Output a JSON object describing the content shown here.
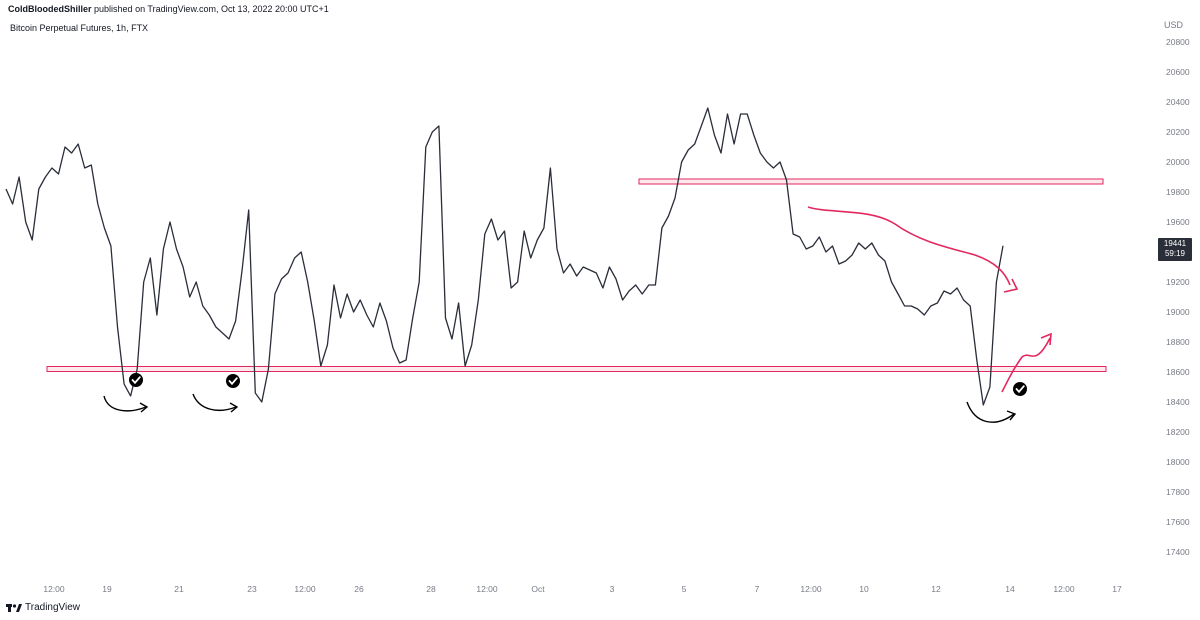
{
  "header": {
    "author": "ColdBloodedShiller",
    "published_text": "published on TradingView.com, Oct 13, 2022 20:00 UTC+1"
  },
  "symbol": {
    "title": "Bitcoin Perpetual Futures, 1h, FTX"
  },
  "currency_label": "USD",
  "last_price": {
    "value": "19441",
    "countdown": "59:19"
  },
  "footer": {
    "brand": "TradingView"
  },
  "colors": {
    "price_line": "#2a2e39",
    "annotation_pink": "#e2295f",
    "annotation_black": "#000000",
    "tick_text": "#787b86"
  },
  "chart_data": {
    "type": "line",
    "title": "",
    "xlabel": "",
    "ylabel": "",
    "x_tick_labels": [
      "12:00",
      "19",
      "21",
      "23",
      "12:00",
      "26",
      "28",
      "12:00",
      "Oct",
      "3",
      "5",
      "7",
      "12:00",
      "10",
      "12",
      "14",
      "12:00",
      "17"
    ],
    "y_ticks": [
      17400,
      17600,
      17800,
      18000,
      18200,
      18400,
      18600,
      18800,
      19000,
      19200,
      19400,
      19600,
      19800,
      20000,
      20200,
      20400,
      20600,
      20800
    ],
    "ylim": [
      17280,
      20880
    ],
    "grid": false,
    "series": [
      {
        "values": [
          19820,
          19720,
          19900,
          19600,
          19480,
          19820,
          19900,
          19960,
          19920,
          20100,
          20060,
          20120,
          19960,
          19980,
          19720,
          19560,
          19440,
          18900,
          18520,
          18440,
          18620,
          19200,
          19360,
          18980,
          19420,
          19600,
          19420,
          19300,
          19100,
          19200,
          19040,
          18980,
          18900,
          18860,
          18820,
          18940,
          19280,
          19680,
          18460,
          18400,
          18620,
          19120,
          19220,
          19260,
          19360,
          19400,
          19200,
          18940,
          18640,
          18780,
          19180,
          18960,
          19120,
          19000,
          19080,
          18980,
          18900,
          19060,
          18940,
          18760,
          18660,
          18680,
          18960,
          19200,
          20100,
          20200,
          20240,
          18960,
          18820,
          19060,
          18640,
          18780,
          19080,
          19520,
          19620,
          19480,
          19540,
          19160,
          19200,
          19540,
          19360,
          19480,
          19560,
          19960,
          19420,
          19260,
          19320,
          19240,
          19300,
          19280,
          19260,
          19160,
          19300,
          19220,
          19080,
          19140,
          19180,
          19120,
          19180,
          19180,
          19560,
          19640,
          19760,
          20000,
          20080,
          20120,
          20240,
          20360,
          20180,
          20060,
          20320,
          20120,
          20320,
          20320,
          20180,
          20060,
          20000,
          19960,
          20000,
          19880,
          19520,
          19500,
          19420,
          19440,
          19500,
          19400,
          19440,
          19320,
          19340,
          19380,
          19460,
          19420,
          19460,
          19380,
          19340,
          19200,
          19120,
          19040,
          19040,
          19020,
          18980,
          19040,
          19060,
          19140,
          19120,
          19160,
          19080,
          19040,
          18680,
          18380,
          18500,
          19200,
          19441
        ]
      }
    ],
    "support_zone": [
      18610,
      18630
    ],
    "resistance_zone": [
      19860,
      19880
    ]
  }
}
